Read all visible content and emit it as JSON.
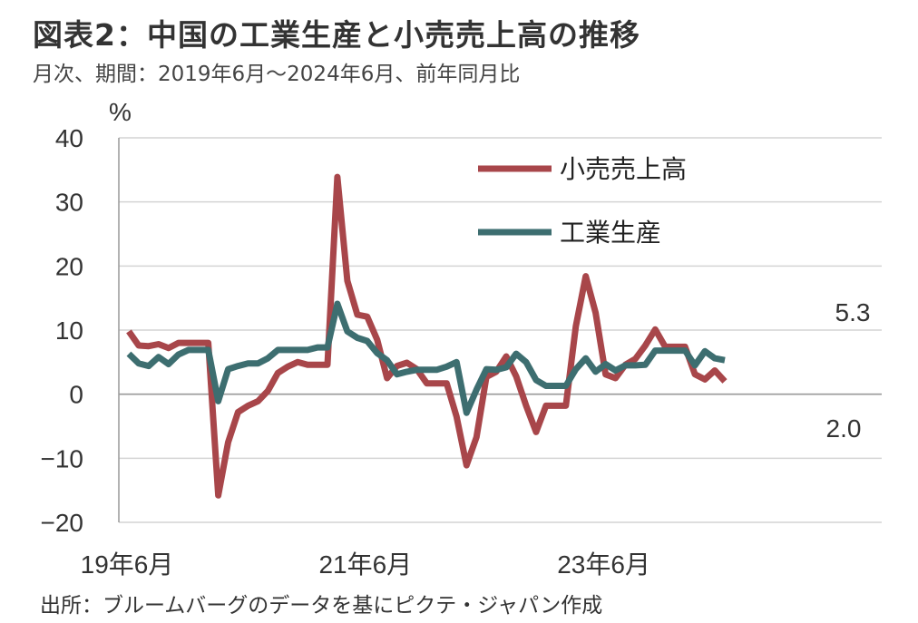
{
  "title": "図表2：中国の工業生産と小売売上高の推移",
  "subtitle": "月次、期間：2019年6月～2024年6月、前年同月比",
  "source": "出所：ブルームバーグのデータを基にピクテ・ジャパン作成",
  "chart_data": {
    "type": "line",
    "ylabel": "%",
    "ylim": [
      -20,
      40
    ],
    "yticks": [
      40,
      30,
      20,
      10,
      0,
      -10,
      -20
    ],
    "yticks_text": [
      "40",
      "30",
      "20",
      "10",
      "0",
      "−10",
      "−20"
    ],
    "x_tick_labels": [
      "19年6月",
      "21年6月",
      "23年6月"
    ],
    "grid": true,
    "legend_position": "top-right",
    "annotations": [
      "5.3",
      "2.0"
    ],
    "series": [
      {
        "name": "小売売上高",
        "color": "#a8464a",
        "values": [
          9.8,
          7.6,
          7.5,
          7.8,
          7.2,
          8.0,
          8.0,
          8.0,
          8.0,
          -15.8,
          -7.5,
          -2.8,
          -1.8,
          -1.1,
          0.5,
          3.3,
          4.3,
          5.0,
          4.6,
          4.6,
          4.6,
          33.9,
          17.7,
          12.4,
          12.1,
          8.5,
          2.5,
          4.4,
          4.9,
          3.9,
          1.7,
          1.7,
          1.7,
          -3.5,
          -11.1,
          -6.7,
          2.7,
          3.5,
          5.9,
          2.8,
          -1.8,
          -5.9,
          -1.8,
          -1.8,
          -1.8,
          10.6,
          18.4,
          12.7,
          3.1,
          2.5,
          4.6,
          5.5,
          7.6,
          10.1,
          7.4,
          7.4,
          7.4,
          3.1,
          2.3,
          3.7,
          2.0
        ]
      },
      {
        "name": "工業生産",
        "color": "#3d6e70",
        "values": [
          6.3,
          4.8,
          4.4,
          5.8,
          4.7,
          6.2,
          6.9,
          6.9,
          6.9,
          -1.1,
          3.9,
          4.4,
          4.8,
          4.8,
          5.6,
          6.9,
          6.9,
          6.9,
          6.9,
          7.3,
          7.3,
          14.1,
          9.8,
          8.8,
          8.3,
          6.4,
          5.3,
          3.1,
          3.5,
          3.8,
          3.8,
          3.8,
          4.3,
          5.0,
          -2.9,
          0.7,
          3.9,
          3.8,
          4.2,
          6.3,
          5.0,
          2.2,
          1.3,
          1.3,
          1.3,
          3.9,
          5.6,
          3.5,
          4.7,
          3.7,
          4.5,
          4.5,
          4.6,
          6.8,
          6.8,
          6.8,
          6.8,
          4.5,
          6.7,
          5.6,
          5.3
        ]
      }
    ]
  }
}
